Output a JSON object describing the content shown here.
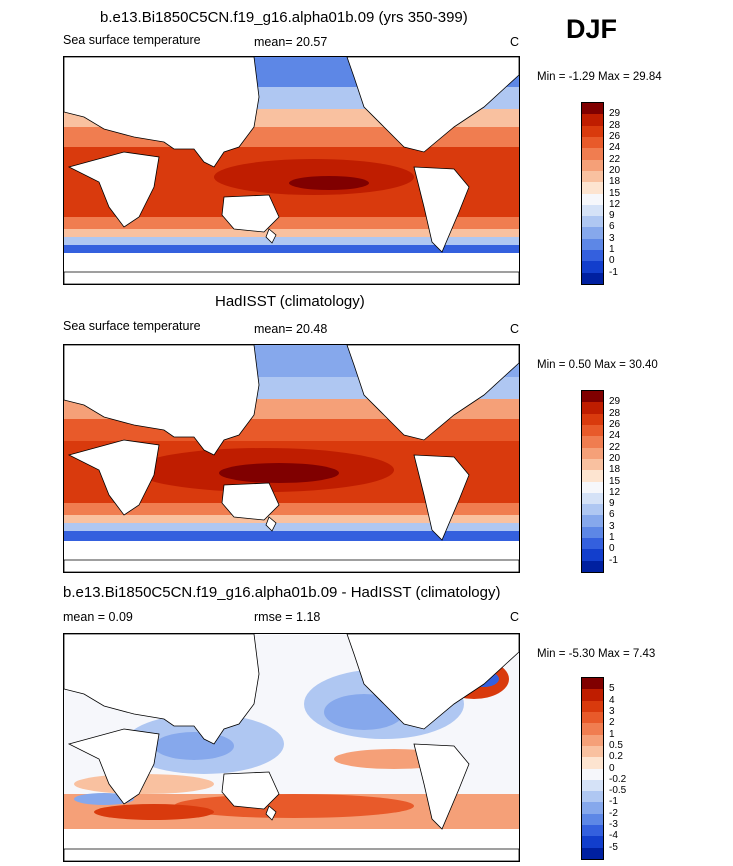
{
  "season": "DJF",
  "panels": [
    {
      "title": "b.e13.Bi1850C5CN.f19_g16.alpha01b.09 (yrs 350-399)",
      "variable": "Sea surface temperature",
      "stat_text": "mean=  20.57",
      "unit": "C",
      "minmax": "Min =  -1.29 Max =  29.84",
      "levels": [
        "29",
        "28",
        "26",
        "24",
        "22",
        "20",
        "18",
        "15",
        "12",
        "9",
        "6",
        "3",
        "1",
        "0",
        "-1"
      ],
      "palette": [
        "#800000",
        "#bf1d00",
        "#d93a0d",
        "#e85a2a",
        "#f07d50",
        "#f5a078",
        "#f9c1a0",
        "#fde4d0",
        "#f6f7fb",
        "#d5e2f7",
        "#afc7f2",
        "#86a8ec",
        "#5d87e6",
        "#3460de",
        "#123ecc",
        "#0020a0"
      ]
    },
    {
      "title": "HadISST (climatology)",
      "variable": "Sea surface temperature",
      "stat_text": "mean=  20.48",
      "unit": "C",
      "minmax": "Min =   0.50 Max =  30.40",
      "levels": [
        "29",
        "28",
        "26",
        "24",
        "22",
        "20",
        "18",
        "15",
        "12",
        "9",
        "6",
        "3",
        "1",
        "0",
        "-1"
      ],
      "palette": [
        "#800000",
        "#bf1d00",
        "#d93a0d",
        "#e85a2a",
        "#f07d50",
        "#f5a078",
        "#f9c1a0",
        "#fde4d0",
        "#f6f7fb",
        "#d5e2f7",
        "#afc7f2",
        "#86a8ec",
        "#5d87e6",
        "#3460de",
        "#123ecc",
        "#0020a0"
      ]
    },
    {
      "title": "b.e13.Bi1850C5CN.f19_g16.alpha01b.09 - HadISST (climatology)",
      "stat_text": "mean =   0.09",
      "rmse_text": "rmse =   1.18",
      "unit": "C",
      "minmax": "Min =  -5.30 Max =   7.43",
      "levels": [
        "5",
        "4",
        "3",
        "2",
        "1",
        "0.5",
        "0.2",
        "0",
        "-0.2",
        "-0.5",
        "-1",
        "-2",
        "-3",
        "-4",
        "-5"
      ],
      "palette": [
        "#800000",
        "#bf1d00",
        "#d93a0d",
        "#e85a2a",
        "#f07d50",
        "#f5a078",
        "#f9c1a0",
        "#fde4d0",
        "#f6f7fb",
        "#d5e2f7",
        "#afc7f2",
        "#86a8ec",
        "#5d87e6",
        "#3460de",
        "#123ecc",
        "#0020a0"
      ]
    }
  ]
}
